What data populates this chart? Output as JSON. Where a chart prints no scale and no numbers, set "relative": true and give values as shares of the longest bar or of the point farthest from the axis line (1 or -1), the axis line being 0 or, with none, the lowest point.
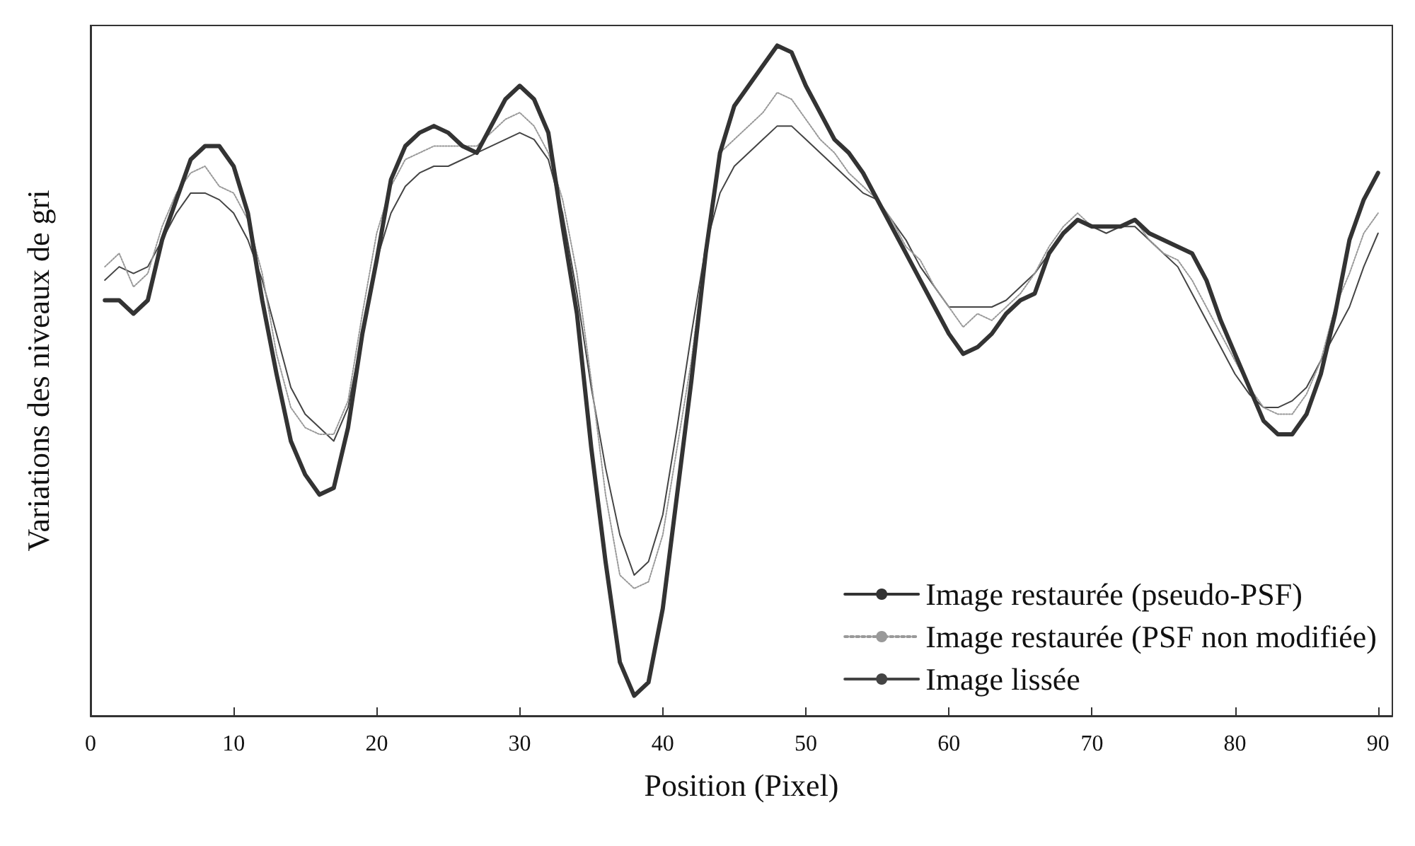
{
  "chart_data": {
    "type": "line",
    "xlabel": "Position (Pixel)",
    "ylabel": "Variations des niveaux de gri",
    "relative": true,
    "x": [
      1,
      2,
      3,
      4,
      5,
      6,
      7,
      8,
      9,
      10,
      11,
      12,
      13,
      14,
      15,
      16,
      17,
      18,
      19,
      20,
      21,
      22,
      23,
      24,
      25,
      26,
      27,
      28,
      29,
      30,
      31,
      32,
      33,
      34,
      35,
      36,
      37,
      38,
      39,
      40,
      41,
      42,
      43,
      44,
      45,
      46,
      47,
      48,
      49,
      50,
      51,
      52,
      53,
      54,
      55,
      56,
      57,
      58,
      59,
      60,
      61,
      62,
      63,
      64,
      65,
      66,
      67,
      68,
      69,
      70,
      71,
      72,
      73,
      74,
      75,
      76,
      77,
      78,
      79,
      80,
      81,
      82,
      83,
      84,
      85,
      86,
      87,
      88,
      89,
      90
    ],
    "xlim": [
      0,
      91
    ],
    "xticks": [
      0,
      10,
      20,
      30,
      40,
      50,
      60,
      70,
      80,
      90
    ],
    "grid": false,
    "legend": "bottom right",
    "marker": "none",
    "series": [
      {
        "name": "Image restaurée (pseudo-PSF)",
        "color": "#333333",
        "line_style": "solid",
        "values": [
          0.62,
          0.62,
          0.6,
          0.62,
          0.71,
          0.77,
          0.83,
          0.85,
          0.85,
          0.82,
          0.75,
          0.62,
          0.51,
          0.41,
          0.36,
          0.33,
          0.34,
          0.43,
          0.57,
          0.68,
          0.8,
          0.85,
          0.87,
          0.88,
          0.87,
          0.85,
          0.84,
          0.88,
          0.92,
          0.94,
          0.92,
          0.87,
          0.73,
          0.6,
          0.4,
          0.23,
          0.08,
          0.03,
          0.05,
          0.16,
          0.33,
          0.5,
          0.69,
          0.84,
          0.91,
          0.94,
          0.97,
          1.0,
          0.99,
          0.94,
          0.9,
          0.86,
          0.84,
          0.81,
          0.77,
          0.73,
          0.69,
          0.65,
          0.61,
          0.57,
          0.54,
          0.55,
          0.57,
          0.6,
          0.62,
          0.63,
          0.69,
          0.72,
          0.74,
          0.73,
          0.73,
          0.73,
          0.74,
          0.72,
          0.71,
          0.7,
          0.69,
          0.65,
          0.59,
          0.54,
          0.49,
          0.44,
          0.42,
          0.42,
          0.45,
          0.51,
          0.6,
          0.71,
          0.77,
          0.81
        ]
      },
      {
        "name": "Image restaurée (PSF non modifiée)",
        "color": "#999999",
        "line_style": "dotted",
        "values": [
          0.67,
          0.69,
          0.64,
          0.66,
          0.73,
          0.78,
          0.81,
          0.82,
          0.79,
          0.78,
          0.74,
          0.66,
          0.54,
          0.46,
          0.43,
          0.42,
          0.42,
          0.47,
          0.6,
          0.72,
          0.79,
          0.83,
          0.84,
          0.85,
          0.85,
          0.85,
          0.85,
          0.87,
          0.89,
          0.9,
          0.88,
          0.84,
          0.77,
          0.66,
          0.5,
          0.33,
          0.21,
          0.19,
          0.2,
          0.27,
          0.4,
          0.53,
          0.7,
          0.84,
          0.86,
          0.88,
          0.9,
          0.93,
          0.92,
          0.89,
          0.86,
          0.84,
          0.81,
          0.79,
          0.77,
          0.74,
          0.7,
          0.68,
          0.64,
          0.61,
          0.58,
          0.6,
          0.59,
          0.61,
          0.63,
          0.66,
          0.7,
          0.73,
          0.75,
          0.73,
          0.73,
          0.73,
          0.74,
          0.71,
          0.69,
          0.68,
          0.65,
          0.61,
          0.57,
          0.53,
          0.49,
          0.46,
          0.45,
          0.45,
          0.48,
          0.53,
          0.61,
          0.66,
          0.72,
          0.75
        ]
      },
      {
        "name": "Image lissée",
        "color": "#444444",
        "line_style": "solid",
        "values": [
          0.65,
          0.67,
          0.66,
          0.67,
          0.71,
          0.75,
          0.78,
          0.78,
          0.77,
          0.75,
          0.71,
          0.65,
          0.57,
          0.49,
          0.45,
          0.43,
          0.41,
          0.46,
          0.57,
          0.68,
          0.75,
          0.79,
          0.81,
          0.82,
          0.82,
          0.83,
          0.84,
          0.85,
          0.86,
          0.87,
          0.86,
          0.83,
          0.75,
          0.63,
          0.49,
          0.37,
          0.27,
          0.21,
          0.23,
          0.3,
          0.43,
          0.57,
          0.7,
          0.78,
          0.82,
          0.84,
          0.86,
          0.88,
          0.88,
          0.86,
          0.84,
          0.82,
          0.8,
          0.78,
          0.77,
          0.74,
          0.71,
          0.67,
          0.64,
          0.61,
          0.61,
          0.61,
          0.61,
          0.62,
          0.64,
          0.66,
          0.69,
          0.72,
          0.74,
          0.73,
          0.72,
          0.73,
          0.73,
          0.71,
          0.69,
          0.67,
          0.63,
          0.59,
          0.55,
          0.51,
          0.48,
          0.46,
          0.46,
          0.47,
          0.49,
          0.53,
          0.57,
          0.61,
          0.67,
          0.72
        ]
      }
    ]
  }
}
